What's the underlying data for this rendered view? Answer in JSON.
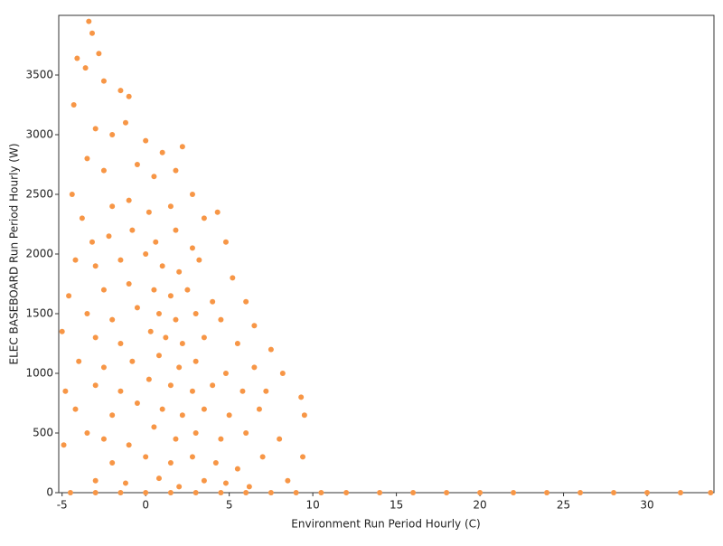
{
  "chart_data": {
    "type": "scatter",
    "xlabel": "Environment Run Period Hourly (C)",
    "ylabel": "ELEC BASEBOARD Run Period Hourly (W)",
    "xlim": [
      -5.2,
      34
    ],
    "xticks": [
      -5,
      0,
      5,
      10,
      15,
      20,
      25,
      30
    ],
    "ylim": [
      0,
      4000
    ],
    "yticks": [
      0,
      500,
      1000,
      1500,
      2000,
      2500,
      3000,
      3500
    ],
    "grid": false,
    "series": [
      {
        "color": "#f79646",
        "x": [
          -3.4,
          -3.2,
          -2.8,
          -4.1,
          -3.6,
          -2.5,
          -1.5,
          -1.0,
          -4.3,
          -3.0,
          -2.0,
          -1.2,
          0.0,
          1.0,
          2.2,
          -3.5,
          -2.5,
          -0.5,
          0.5,
          1.8,
          2.8,
          -4.4,
          -3.8,
          -2.0,
          -1.0,
          0.2,
          1.5,
          3.5,
          4.3,
          -3.2,
          -2.2,
          -0.8,
          0.6,
          1.8,
          2.8,
          4.8,
          -4.2,
          -3.0,
          -1.5,
          0.0,
          1.0,
          2.0,
          3.2,
          5.2,
          -4.6,
          -2.5,
          -1.0,
          0.5,
          1.5,
          2.5,
          4.0,
          6.0,
          -3.5,
          -2.0,
          -0.5,
          0.8,
          1.8,
          3.0,
          4.5,
          6.5,
          -5.0,
          -3.0,
          -1.5,
          0.3,
          1.2,
          2.2,
          3.5,
          5.5,
          7.5,
          -4.0,
          -2.5,
          -0.8,
          0.8,
          2.0,
          3.0,
          4.8,
          6.5,
          8.2,
          -4.8,
          -3.0,
          -1.5,
          0.2,
          1.5,
          2.8,
          4.0,
          5.8,
          7.2,
          9.3,
          -4.2,
          -2.0,
          -0.5,
          1.0,
          2.2,
          3.5,
          5.0,
          6.8,
          9.5,
          -3.5,
          -2.5,
          -1.0,
          0.5,
          1.8,
          3.0,
          4.5,
          6.0,
          8.0,
          -4.9,
          -2.0,
          0.0,
          1.5,
          2.8,
          4.2,
          5.5,
          7.0,
          9.4,
          -3.0,
          -1.2,
          0.8,
          2.0,
          3.5,
          4.8,
          6.2,
          8.5,
          -4.5,
          -3,
          -1.5,
          0,
          1.5,
          3,
          4.5,
          6,
          7.5,
          9,
          10.5,
          12,
          14,
          16,
          18,
          20,
          22,
          24,
          26,
          28,
          30,
          32,
          33.8
        ],
        "y": [
          3950,
          3850,
          3680,
          3640,
          3560,
          3450,
          3370,
          3320,
          3250,
          3050,
          3000,
          3100,
          2950,
          2850,
          2900,
          2800,
          2700,
          2750,
          2650,
          2700,
          2500,
          2500,
          2300,
          2400,
          2450,
          2350,
          2400,
          2300,
          2350,
          2100,
          2150,
          2200,
          2100,
          2200,
          2050,
          2100,
          1950,
          1900,
          1950,
          2000,
          1900,
          1850,
          1950,
          1800,
          1650,
          1700,
          1750,
          1700,
          1650,
          1700,
          1600,
          1600,
          1500,
          1450,
          1550,
          1500,
          1450,
          1500,
          1450,
          1400,
          1350,
          1300,
          1250,
          1350,
          1300,
          1250,
          1300,
          1250,
          1200,
          1100,
          1050,
          1100,
          1150,
          1050,
          1100,
          1000,
          1050,
          1000,
          850,
          900,
          850,
          950,
          900,
          850,
          900,
          850,
          850,
          800,
          700,
          650,
          750,
          700,
          650,
          700,
          650,
          700,
          650,
          500,
          450,
          400,
          550,
          450,
          500,
          450,
          500,
          450,
          400,
          250,
          300,
          250,
          300,
          250,
          200,
          300,
          300,
          100,
          80,
          120,
          50,
          100,
          80,
          50,
          100,
          0,
          0,
          0,
          0,
          0,
          0,
          0,
          0,
          0,
          0,
          0,
          0,
          0,
          0,
          0,
          0,
          0,
          0,
          0,
          0,
          0,
          0,
          0
        ]
      }
    ]
  }
}
